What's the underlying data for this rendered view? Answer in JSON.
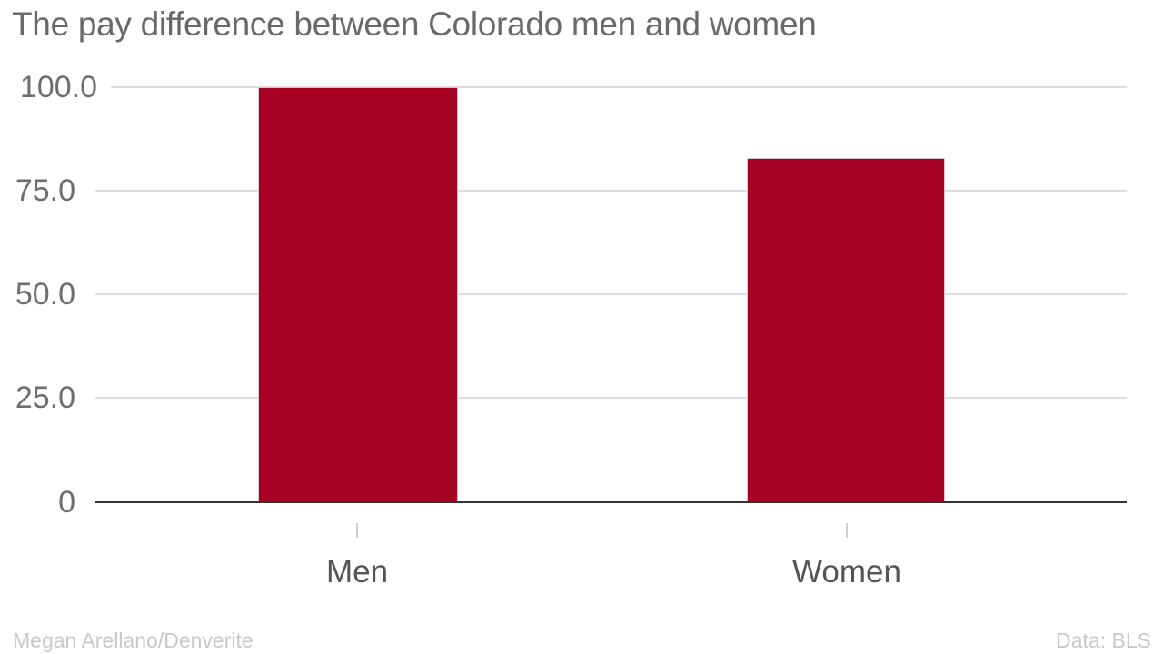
{
  "chart_data": {
    "type": "bar",
    "title": "The pay difference between Colorado men and women",
    "categories": [
      "Men",
      "Women"
    ],
    "values": [
      100.0,
      82.9
    ],
    "xlabel": "",
    "ylabel": "",
    "ylim": [
      0,
      100
    ],
    "ytick_labels": [
      "100.0",
      "75.0",
      "50.0",
      "25.0",
      "0"
    ],
    "ytick_values": [
      100,
      75,
      50,
      25,
      0
    ],
    "grid": true,
    "legend_position": "none",
    "bar_color": "#a60223",
    "gridline_color": "#dddddd",
    "axis_line_color": "#333333",
    "title_color": "#696969"
  },
  "footer": {
    "byline": "Megan Arellano/Denverite",
    "source": "Data: BLS"
  }
}
